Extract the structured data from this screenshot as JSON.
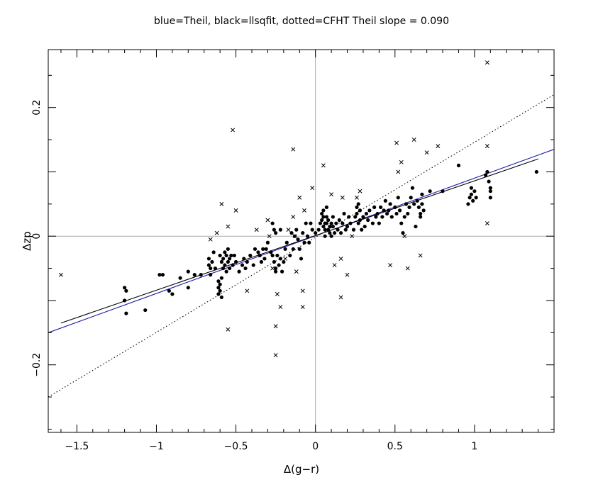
{
  "chart_data": {
    "type": "scatter",
    "title": "blue=Theil, black=llsqfit, dotted=CFHT    Theil slope =  0.090",
    "xlabel": "Δ(g−r)",
    "ylabel": "Δzp",
    "xlim": [
      -1.68,
      1.5
    ],
    "ylim": [
      -0.305,
      0.29
    ],
    "x_ticks": [
      -1.5,
      -1,
      -0.5,
      0,
      0.5,
      1
    ],
    "x_tick_labels": [
      "−1.5",
      "−1",
      "−0.5",
      "0",
      "0.5",
      "1"
    ],
    "y_ticks": [
      -0.2,
      0,
      0.2
    ],
    "y_tick_labels": [
      "−0.2",
      "0",
      "0.2"
    ],
    "reference_lines": {
      "x": 0,
      "y": 0,
      "color": "#aaaaaa"
    },
    "series": [
      {
        "marker": "dot",
        "points": [
          [
            -1.2,
            -0.08
          ],
          [
            -1.19,
            -0.085
          ],
          [
            -1.2,
            -0.1
          ],
          [
            -1.19,
            -0.12
          ],
          [
            -1.07,
            -0.115
          ],
          [
            -0.98,
            -0.06
          ],
          [
            -0.96,
            -0.06
          ],
          [
            -0.92,
            -0.085
          ],
          [
            -0.9,
            -0.09
          ],
          [
            -0.85,
            -0.065
          ],
          [
            -0.8,
            -0.055
          ],
          [
            -0.8,
            -0.08
          ],
          [
            -0.76,
            -0.06
          ],
          [
            -0.72,
            -0.06
          ],
          [
            -0.67,
            -0.035
          ],
          [
            -0.67,
            -0.045
          ],
          [
            -0.66,
            -0.05
          ],
          [
            -0.66,
            -0.06
          ],
          [
            -0.65,
            -0.04
          ],
          [
            -0.64,
            -0.025
          ],
          [
            -0.63,
            -0.05
          ],
          [
            -0.61,
            -0.07
          ],
          [
            -0.61,
            -0.08
          ],
          [
            -0.61,
            -0.09
          ],
          [
            -0.6,
            -0.075
          ],
          [
            -0.6,
            -0.085
          ],
          [
            -0.59,
            -0.065
          ],
          [
            -0.59,
            -0.095
          ],
          [
            -0.6,
            -0.03
          ],
          [
            -0.59,
            -0.04
          ],
          [
            -0.58,
            -0.05
          ],
          [
            -0.58,
            -0.035
          ],
          [
            -0.57,
            -0.045
          ],
          [
            -0.57,
            -0.025
          ],
          [
            -0.56,
            -0.03
          ],
          [
            -0.56,
            -0.055
          ],
          [
            -0.55,
            -0.04
          ],
          [
            -0.55,
            -0.02
          ],
          [
            -0.54,
            -0.035
          ],
          [
            -0.54,
            -0.05
          ],
          [
            -0.53,
            -0.03
          ],
          [
            -0.52,
            -0.045
          ],
          [
            -0.51,
            -0.03
          ],
          [
            -0.5,
            -0.04
          ],
          [
            -0.48,
            -0.055
          ],
          [
            -0.46,
            -0.045
          ],
          [
            -0.45,
            -0.035
          ],
          [
            -0.44,
            -0.05
          ],
          [
            -0.43,
            -0.04
          ],
          [
            -0.41,
            -0.03
          ],
          [
            -0.39,
            -0.045
          ],
          [
            -0.38,
            -0.02
          ],
          [
            -0.36,
            -0.025
          ],
          [
            -0.35,
            -0.03
          ],
          [
            -0.34,
            -0.04
          ],
          [
            -0.33,
            -0.02
          ],
          [
            -0.32,
            -0.035
          ],
          [
            -0.31,
            -0.02
          ],
          [
            -0.3,
            -0.01
          ],
          [
            -0.28,
            -0.025
          ],
          [
            -0.27,
            -0.03
          ],
          [
            -0.26,
            -0.04
          ],
          [
            -0.25,
            -0.05
          ],
          [
            -0.25,
            -0.055
          ],
          [
            -0.24,
            -0.03
          ],
          [
            -0.23,
            -0.045
          ],
          [
            -0.22,
            -0.035
          ],
          [
            -0.21,
            -0.055
          ],
          [
            -0.2,
            -0.04
          ],
          [
            -0.19,
            -0.02
          ],
          [
            -0.27,
            0.02
          ],
          [
            -0.26,
            0.01
          ],
          [
            -0.25,
            0.005
          ],
          [
            -0.22,
            0.01
          ],
          [
            -0.18,
            -0.01
          ],
          [
            -0.16,
            -0.03
          ],
          [
            -0.15,
            0.005
          ],
          [
            -0.14,
            -0.02
          ],
          [
            -0.13,
            0.0
          ],
          [
            -0.12,
            0.01
          ],
          [
            -0.11,
            -0.005
          ],
          [
            -0.1,
            -0.02
          ],
          [
            -0.09,
            -0.035
          ],
          [
            -0.08,
            0.005
          ],
          [
            -0.07,
            -0.01
          ],
          [
            -0.06,
            0.02
          ],
          [
            -0.05,
            0.0
          ],
          [
            -0.04,
            -0.01
          ],
          [
            -0.03,
            0.02
          ],
          [
            -0.02,
            0.01
          ],
          [
            0.0,
            0.005
          ],
          [
            0.02,
            0.01
          ],
          [
            0.03,
            0.02
          ],
          [
            0.04,
            0.025
          ],
          [
            0.04,
            0.035
          ],
          [
            0.05,
            0.04
          ],
          [
            0.05,
            0.03
          ],
          [
            0.05,
            0.015
          ],
          [
            0.06,
            0.02
          ],
          [
            0.06,
            0.01
          ],
          [
            0.06,
            0.0
          ],
          [
            0.07,
            0.03
          ],
          [
            0.07,
            0.045
          ],
          [
            0.07,
            0.02
          ],
          [
            0.08,
            0.01
          ],
          [
            0.08,
            0.025
          ],
          [
            0.09,
            0.005
          ],
          [
            0.09,
            0.015
          ],
          [
            0.1,
            0.02
          ],
          [
            0.1,
            0.0
          ],
          [
            0.11,
            0.015
          ],
          [
            0.11,
            0.03
          ],
          [
            0.12,
            0.005
          ],
          [
            0.13,
            0.02
          ],
          [
            0.14,
            0.01
          ],
          [
            0.15,
            0.025
          ],
          [
            0.16,
            0.005
          ],
          [
            0.17,
            0.02
          ],
          [
            0.18,
            0.035
          ],
          [
            0.19,
            0.01
          ],
          [
            0.2,
            0.015
          ],
          [
            0.21,
            0.03
          ],
          [
            0.22,
            0.02
          ],
          [
            0.24,
            0.01
          ],
          [
            0.25,
            0.03
          ],
          [
            0.26,
            0.035
          ],
          [
            0.26,
            0.045
          ],
          [
            0.27,
            0.05
          ],
          [
            0.27,
            0.02
          ],
          [
            0.28,
            0.025
          ],
          [
            0.28,
            0.04
          ],
          [
            0.29,
            0.01
          ],
          [
            0.3,
            0.03
          ],
          [
            0.31,
            0.015
          ],
          [
            0.32,
            0.035
          ],
          [
            0.33,
            0.025
          ],
          [
            0.34,
            0.04
          ],
          [
            0.36,
            0.02
          ],
          [
            0.37,
            0.045
          ],
          [
            0.38,
            0.03
          ],
          [
            0.39,
            0.035
          ],
          [
            0.4,
            0.02
          ],
          [
            0.41,
            0.045
          ],
          [
            0.42,
            0.03
          ],
          [
            0.43,
            0.04
          ],
          [
            0.44,
            0.055
          ],
          [
            0.45,
            0.035
          ],
          [
            0.46,
            0.04
          ],
          [
            0.47,
            0.05
          ],
          [
            0.48,
            0.03
          ],
          [
            0.5,
            0.045
          ],
          [
            0.51,
            0.035
          ],
          [
            0.52,
            0.06
          ],
          [
            0.53,
            0.04
          ],
          [
            0.54,
            0.02
          ],
          [
            0.55,
            0.005
          ],
          [
            0.56,
            0.03
          ],
          [
            0.57,
            0.05
          ],
          [
            0.58,
            0.035
          ],
          [
            0.59,
            0.045
          ],
          [
            0.6,
            0.06
          ],
          [
            0.61,
            0.075
          ],
          [
            0.62,
            0.05
          ],
          [
            0.63,
            0.015
          ],
          [
            0.64,
            0.055
          ],
          [
            0.65,
            0.045
          ],
          [
            0.66,
            0.035
          ],
          [
            0.66,
            0.03
          ],
          [
            0.67,
            0.05
          ],
          [
            0.67,
            0.065
          ],
          [
            0.68,
            0.04
          ],
          [
            0.72,
            0.07
          ],
          [
            0.8,
            0.07
          ],
          [
            0.9,
            0.11
          ],
          [
            0.96,
            0.05
          ],
          [
            0.97,
            0.06
          ],
          [
            0.98,
            0.065
          ],
          [
            0.98,
            0.075
          ],
          [
            0.99,
            0.055
          ],
          [
            1.0,
            0.07
          ],
          [
            1.01,
            0.06
          ],
          [
            1.07,
            0.095
          ],
          [
            1.08,
            0.1
          ],
          [
            1.09,
            0.085
          ],
          [
            1.1,
            0.06
          ],
          [
            1.1,
            0.075
          ],
          [
            1.1,
            0.07
          ],
          [
            1.39,
            0.1
          ]
        ]
      },
      {
        "marker": "cross",
        "points": [
          [
            -1.6,
            -0.06
          ],
          [
            -0.66,
            -0.005
          ],
          [
            -0.62,
            0.005
          ],
          [
            -0.59,
            0.05
          ],
          [
            -0.55,
            0.015
          ],
          [
            -0.55,
            -0.145
          ],
          [
            -0.52,
            0.165
          ],
          [
            -0.5,
            0.04
          ],
          [
            -0.43,
            -0.085
          ],
          [
            -0.37,
            0.01
          ],
          [
            -0.3,
            0.025
          ],
          [
            -0.29,
            0.0
          ],
          [
            -0.27,
            -0.05
          ],
          [
            -0.25,
            -0.14
          ],
          [
            -0.25,
            -0.185
          ],
          [
            -0.24,
            -0.09
          ],
          [
            -0.22,
            -0.11
          ],
          [
            -0.19,
            -0.035
          ],
          [
            -0.17,
            0.01
          ],
          [
            -0.14,
            0.03
          ],
          [
            -0.14,
            0.135
          ],
          [
            -0.13,
            0.0
          ],
          [
            -0.12,
            -0.055
          ],
          [
            -0.1,
            0.06
          ],
          [
            -0.08,
            -0.085
          ],
          [
            -0.08,
            -0.11
          ],
          [
            -0.07,
            0.04
          ],
          [
            -0.02,
            0.075
          ],
          [
            0.05,
            0.11
          ],
          [
            0.1,
            0.065
          ],
          [
            0.12,
            -0.045
          ],
          [
            0.16,
            -0.035
          ],
          [
            0.16,
            -0.095
          ],
          [
            0.17,
            0.06
          ],
          [
            0.2,
            -0.06
          ],
          [
            0.23,
            0.0
          ],
          [
            0.26,
            0.06
          ],
          [
            0.28,
            0.07
          ],
          [
            0.47,
            -0.045
          ],
          [
            0.51,
            0.145
          ],
          [
            0.52,
            0.1
          ],
          [
            0.54,
            0.115
          ],
          [
            0.56,
            0.0
          ],
          [
            0.58,
            -0.05
          ],
          [
            0.62,
            0.15
          ],
          [
            0.66,
            -0.03
          ],
          [
            0.7,
            0.13
          ],
          [
            0.77,
            0.14
          ],
          [
            1.08,
            0.27
          ],
          [
            1.08,
            0.14
          ],
          [
            1.08,
            0.02
          ]
        ]
      }
    ],
    "lines": [
      {
        "name": "Theil",
        "color": "#1a1aaa",
        "style": "solid",
        "x": [
          -1.68,
          1.5
        ],
        "y": [
          -0.15,
          0.135
        ]
      },
      {
        "name": "llsqfit",
        "color": "#000000",
        "style": "solid",
        "x": [
          -1.6,
          1.4
        ],
        "y": [
          -0.135,
          0.12
        ]
      },
      {
        "name": "CFHT",
        "color": "#000000",
        "style": "dotted",
        "x": [
          -1.68,
          1.5
        ],
        "y": [
          -0.25,
          0.22
        ]
      }
    ]
  }
}
